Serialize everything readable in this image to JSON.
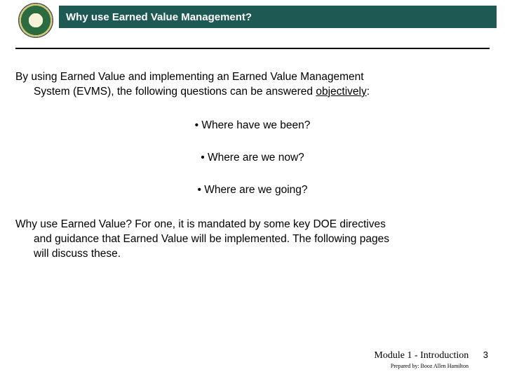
{
  "header": {
    "title": "Why use Earned Value Management?",
    "bg_color": "#1f5954",
    "text_color": "#ffffff"
  },
  "intro": {
    "line1": "By using Earned Value and implementing an Earned Value Management",
    "line2_a": "System (EVMS), the following questions can be answered ",
    "line2_b": "objectively",
    "line2_c": ":"
  },
  "bullets": [
    "Where have we been?",
    "Where are we now?",
    "Where are we going?"
  ],
  "closing": {
    "line1": "Why use Earned Value? For one, it is mandated by some key DOE directives",
    "line2": "and guidance that Earned Value will be implemented.  The following pages",
    "line3": "will discuss these."
  },
  "footer": {
    "module": "Module 1 - Introduction",
    "page": "3",
    "prepared": "Prepared by: Booz Allen Hamilton"
  }
}
